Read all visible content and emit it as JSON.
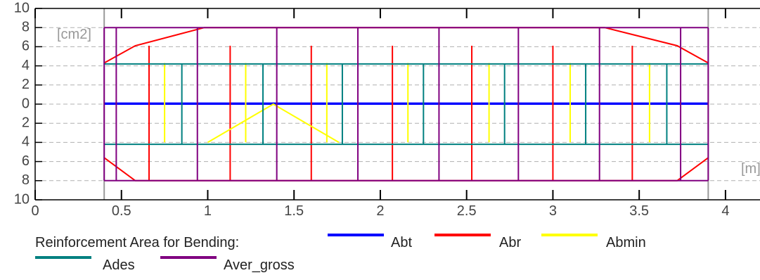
{
  "chart_data": {
    "type": "line",
    "title": "",
    "xlabel": "",
    "ylabel": "",
    "y_unit_label": "[cm2]",
    "x_unit_label": "[m]",
    "xlim": [
      0,
      4.2
    ],
    "ylim": [
      -10,
      10
    ],
    "x_ticks": [
      0,
      0.5,
      1,
      1.5,
      2,
      2.5,
      3,
      3.5,
      4
    ],
    "x_tick_labels": [
      "0",
      "0.5",
      "1",
      "1.5",
      "2",
      "2.5",
      "3",
      "3.5",
      "4"
    ],
    "y_ticks": [
      10,
      8,
      6,
      4,
      2,
      0,
      -2,
      -4,
      -6,
      -8,
      -10
    ],
    "y_tick_labels": [
      "10",
      "8",
      "6",
      "4",
      "2",
      "0",
      "2",
      "4",
      "6",
      "8",
      "10"
    ],
    "grid": true,
    "support_lines_x": [
      0.4,
      3.9
    ],
    "legend_title": "Reinforcement Area for Bending:",
    "legend_position": "bottom",
    "series": [
      {
        "name": "Abt",
        "color": "#0000ff",
        "segments": [
          [
            [
              0.4,
              0
            ],
            [
              3.9,
              0
            ]
          ],
          [
            [
              0.4,
              0.1
            ],
            [
              3.9,
              0.1
            ]
          ]
        ]
      },
      {
        "name": "Abr",
        "color": "#ff0000",
        "segments": [
          [
            [
              0.4,
              4.3
            ],
            [
              0.58,
              6.1
            ],
            [
              0.98,
              8
            ],
            [
              3.3,
              8
            ],
            [
              3.72,
              6.1
            ],
            [
              3.9,
              4.3
            ]
          ],
          [
            [
              0.4,
              -5.6
            ],
            [
              0.58,
              -8
            ],
            [
              3.72,
              -8
            ],
            [
              3.9,
              -5.6
            ]
          ]
        ],
        "stirrups_x": [
          0.66,
          1.13,
          1.6,
          2.07,
          2.53,
          3.0,
          3.46
        ],
        "stirrup_range": [
          -8,
          6.1
        ]
      },
      {
        "name": "Abmin",
        "color": "#ffff00",
        "segments": [
          [
            [
              1.0,
              -4
            ],
            [
              1.38,
              0
            ],
            [
              1.76,
              -4
            ]
          ]
        ],
        "stirrups_x": [
          0.75,
          1.22,
          1.69,
          2.16,
          2.63,
          3.1,
          3.56
        ],
        "stirrup_range": [
          -4,
          4.3
        ]
      },
      {
        "name": "Ades",
        "color": "#008080",
        "segments": [
          [
            [
              0.4,
              4.2
            ],
            [
              3.9,
              4.2
            ]
          ],
          [
            [
              0.4,
              -4.2
            ],
            [
              3.9,
              -4.2
            ]
          ]
        ],
        "stirrups_x": [
          0.85,
          1.32,
          1.78,
          2.25,
          2.72,
          3.19,
          3.66
        ],
        "stirrup_range": [
          -4.2,
          4.2
        ]
      },
      {
        "name": "Aver_gross",
        "color": "#800080",
        "segments": [
          [
            [
              0.4,
              8
            ],
            [
              3.9,
              8
            ]
          ],
          [
            [
              0.4,
              -8
            ],
            [
              3.9,
              -8
            ]
          ]
        ],
        "stirrups_x": [
          0.4,
          0.47,
          0.94,
          1.4,
          1.87,
          2.34,
          2.8,
          3.27,
          3.74,
          3.9
        ],
        "stirrup_range": [
          -8,
          8
        ]
      }
    ]
  }
}
